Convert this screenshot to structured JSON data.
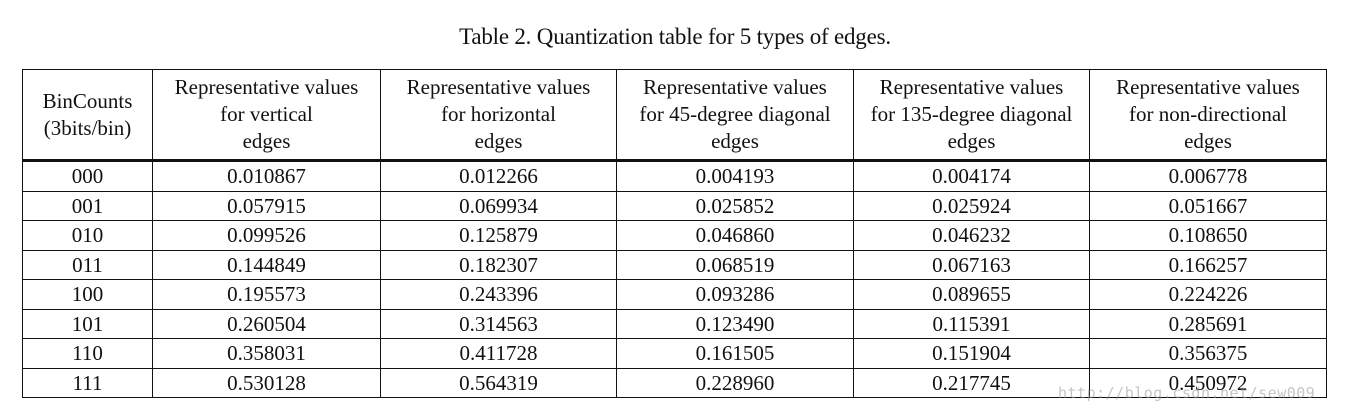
{
  "caption": "Table 2. Quantization table for 5 types of edges.",
  "table": {
    "headers": [
      [
        "BinCounts",
        "(3bits/bin)"
      ],
      [
        "Representative values",
        "for vertical",
        "edges"
      ],
      [
        "Representative values",
        "for horizontal",
        "edges"
      ],
      [
        "Representative values",
        "for 45-degree diagonal",
        "edges"
      ],
      [
        "Representative values",
        "for 135-degree diagonal",
        "edges"
      ],
      [
        "Representative values",
        "for non-directional",
        "edges"
      ]
    ],
    "rows": [
      [
        "000",
        "0.010867",
        "0.012266",
        "0.004193",
        "0.004174",
        "0.006778"
      ],
      [
        "001",
        "0.057915",
        "0.069934",
        "0.025852",
        "0.025924",
        "0.051667"
      ],
      [
        "010",
        "0.099526",
        "0.125879",
        "0.046860",
        "0.046232",
        "0.108650"
      ],
      [
        "011",
        "0.144849",
        "0.182307",
        "0.068519",
        "0.067163",
        "0.166257"
      ],
      [
        "100",
        "0.195573",
        "0.243396",
        "0.093286",
        "0.089655",
        "0.224226"
      ],
      [
        "101",
        "0.260504",
        "0.314563",
        "0.123490",
        "0.115391",
        "0.285691"
      ],
      [
        "110",
        "0.358031",
        "0.411728",
        "0.161505",
        "0.151904",
        "0.356375"
      ],
      [
        "111",
        "0.530128",
        "0.564319",
        "0.228960",
        "0.217745",
        "0.450972"
      ]
    ]
  },
  "watermark": "http://blog.csdn.net/sew009"
}
